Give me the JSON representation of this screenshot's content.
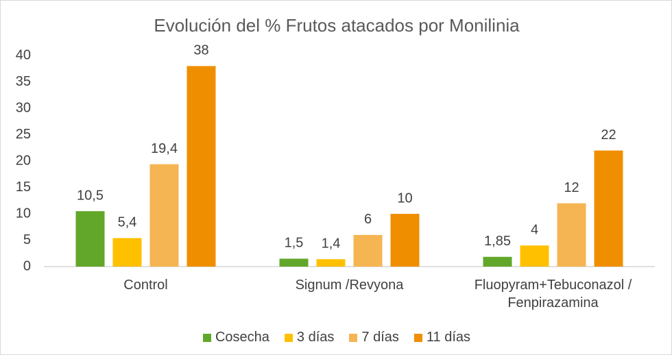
{
  "chart_data": {
    "type": "bar",
    "title": "Evolución del % Frutos atacados por Monilinia",
    "categories": [
      "Control",
      "Signum /Revyona",
      "Fluopyram+Tebuconazol / Fenpirazamina"
    ],
    "series": [
      {
        "name": "Cosecha",
        "color": "#62a72a",
        "values": [
          10.5,
          1.5,
          1.85
        ],
        "value_labels": [
          "10,5",
          "1,5",
          "1,85"
        ]
      },
      {
        "name": "3 días",
        "color": "#ffc000",
        "values": [
          5.4,
          1.4,
          4
        ],
        "value_labels": [
          "5,4",
          "1,4",
          "4"
        ]
      },
      {
        "name": "7 días",
        "color": "#f5b553",
        "values": [
          19.4,
          6,
          12
        ],
        "value_labels": [
          "19,4",
          "6",
          "12"
        ]
      },
      {
        "name": "11 días",
        "color": "#ef8f00",
        "values": [
          38,
          10,
          22
        ],
        "value_labels": [
          "38",
          "10",
          "22"
        ]
      }
    ],
    "ylim": [
      0,
      40
    ],
    "yticks": [
      0,
      5,
      10,
      15,
      20,
      25,
      30,
      35,
      40
    ],
    "grid": false,
    "legend": "bottom"
  }
}
